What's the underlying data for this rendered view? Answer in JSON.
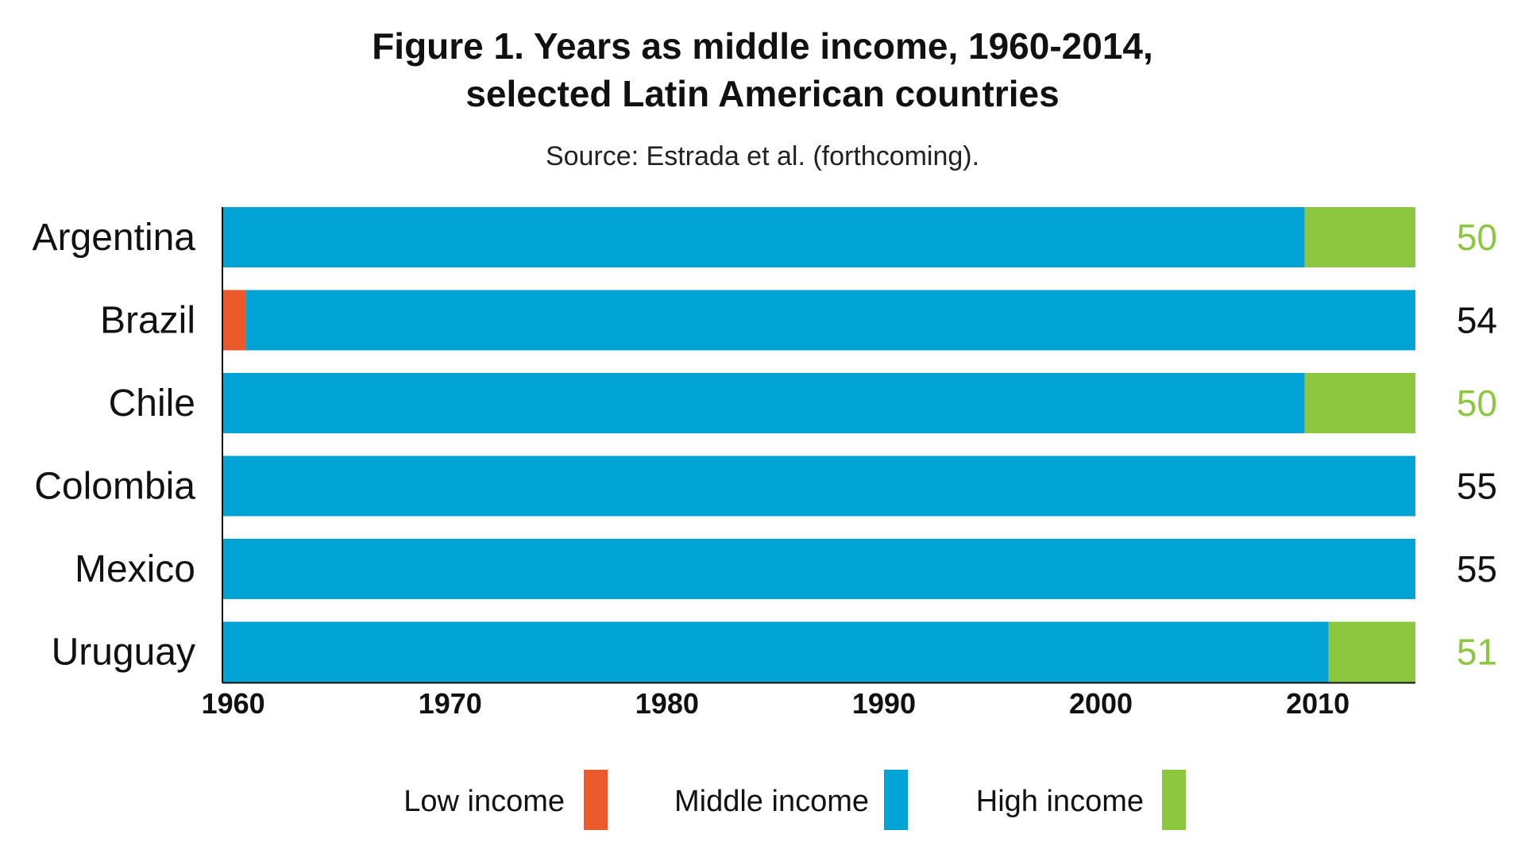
{
  "chart_data": {
    "type": "bar",
    "orientation": "horizontal",
    "stacked": true,
    "title": "Figure 1. Years as middle income, 1960-2014, selected Latin American countries",
    "title_lines": [
      "Figure 1. Years as middle income, 1960-2014,",
      "selected Latin American countries"
    ],
    "subtitle": "Source: Estrada et al. (forthcoming).",
    "xlabel": "",
    "ylabel": "",
    "xlim": [
      1959.5,
      2014.5
    ],
    "x_ticks": [
      1960,
      1970,
      1980,
      1990,
      2000,
      2010
    ],
    "grid": false,
    "legend_position": "bottom",
    "categories": [
      "Argentina",
      "Brazil",
      "Chile",
      "Colombia",
      "Mexico",
      "Uruguay"
    ],
    "series": [
      {
        "name": "Low income",
        "color": "#ec5a2c",
        "ranges": [
          null,
          [
            1959.5,
            1960.6
          ],
          null,
          null,
          null,
          null
        ]
      },
      {
        "name": "Middle income",
        "color": "#00a3d3",
        "ranges": [
          [
            1959.5,
            2009.4
          ],
          [
            1960.6,
            2014.5
          ],
          [
            1959.5,
            2009.4
          ],
          [
            1959.5,
            2014.5
          ],
          [
            1959.5,
            2014.5
          ],
          [
            1959.5,
            2010.5
          ]
        ]
      },
      {
        "name": "High income",
        "color": "#8dc63f",
        "ranges": [
          [
            2009.4,
            2014.5
          ],
          null,
          [
            2009.4,
            2014.5
          ],
          null,
          null,
          [
            2010.5,
            2014.5
          ]
        ]
      }
    ],
    "totals": [
      {
        "value": "50",
        "color": "#8dc63f"
      },
      {
        "value": "54",
        "color": "#111111"
      },
      {
        "value": "50",
        "color": "#8dc63f"
      },
      {
        "value": "55",
        "color": "#111111"
      },
      {
        "value": "55",
        "color": "#111111"
      },
      {
        "value": "51",
        "color": "#8dc63f"
      }
    ]
  }
}
